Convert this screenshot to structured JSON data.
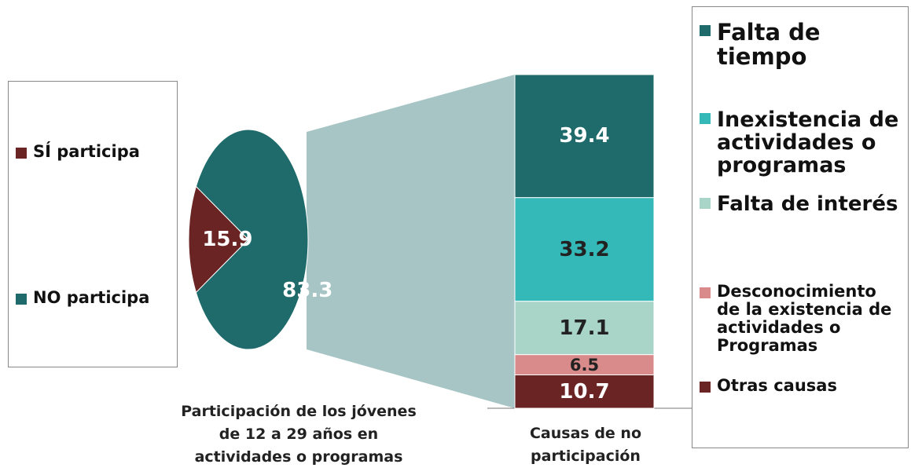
{
  "chart_data": [
    {
      "type": "pie",
      "title": "Participación de los jóvenes de 12 a 29 años en actividades o programas",
      "categories": [
        "SÍ participa",
        "NO participa"
      ],
      "values": [
        15.9,
        83.3
      ],
      "colors": [
        "#6b2424",
        "#1f6b6b"
      ]
    },
    {
      "type": "stacked-bar",
      "title": "Causas de no participación",
      "series": [
        {
          "name": "Falta de tiempo",
          "color": "#1f6b6b",
          "values": [
            39.4
          ]
        },
        {
          "name": "Inexistencia de actividades o programas",
          "color": "#35b8b8",
          "values": [
            33.2
          ]
        },
        {
          "name": "Falta de interés",
          "color": "#a9d4c8",
          "values": [
            17.1
          ]
        },
        {
          "name": "Desconocimiento de la existencia de actividades o Programas",
          "color": "#d98a8a",
          "values": [
            6.5
          ]
        },
        {
          "name": "Otras causas",
          "color": "#6b2424",
          "values": [
            10.7
          ]
        }
      ]
    }
  ]
}
